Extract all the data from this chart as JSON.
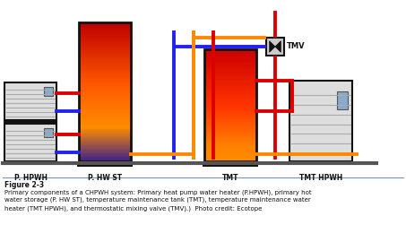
{
  "bg_color": "#ffffff",
  "title": "Figure 2-3",
  "caption_line1": "Primary components of a CHPWH system: Primary heat pump water heater (P.HPWH), primary hot",
  "caption_line2": "water storage (P. HW ST), temperature maintenance tank (TMT), temperature maintenance water",
  "caption_line3": "heater (TMT HPWH), and thermostatic mixing valve (TMV).)  Photo credit: Ecotope",
  "labels": [
    "P. HPWH",
    "P. HW ST",
    "TMT",
    "TMT HPWH"
  ],
  "colors": {
    "red": "#dd0000",
    "blue": "#2222ee",
    "orange": "#ff8800",
    "dark": "#111111",
    "gray_light": "#dddddd",
    "gray_med": "#aaaaaa",
    "gray_dark": "#555555",
    "panel_blue": "#88aacc",
    "sep_line": "#6699bb"
  },
  "diagram_area": [
    0.0,
    0.35,
    1.0,
    1.0
  ],
  "caption_area": [
    0.0,
    0.0,
    1.0,
    0.35
  ],
  "phwst_gradient": [
    [
      0.0,
      [
        0.75,
        0.0,
        0.0
      ]
    ],
    [
      0.45,
      [
        1.0,
        0.35,
        0.0
      ]
    ],
    [
      0.75,
      [
        1.0,
        0.55,
        0.0
      ]
    ],
    [
      1.0,
      [
        0.22,
        0.12,
        0.55
      ]
    ]
  ],
  "tmt_gradient": [
    [
      0.0,
      [
        0.8,
        0.0,
        0.0
      ]
    ],
    [
      0.5,
      [
        1.0,
        0.2,
        0.0
      ]
    ],
    [
      0.85,
      [
        1.0,
        0.5,
        0.0
      ]
    ],
    [
      1.0,
      [
        1.0,
        0.55,
        0.0
      ]
    ]
  ]
}
